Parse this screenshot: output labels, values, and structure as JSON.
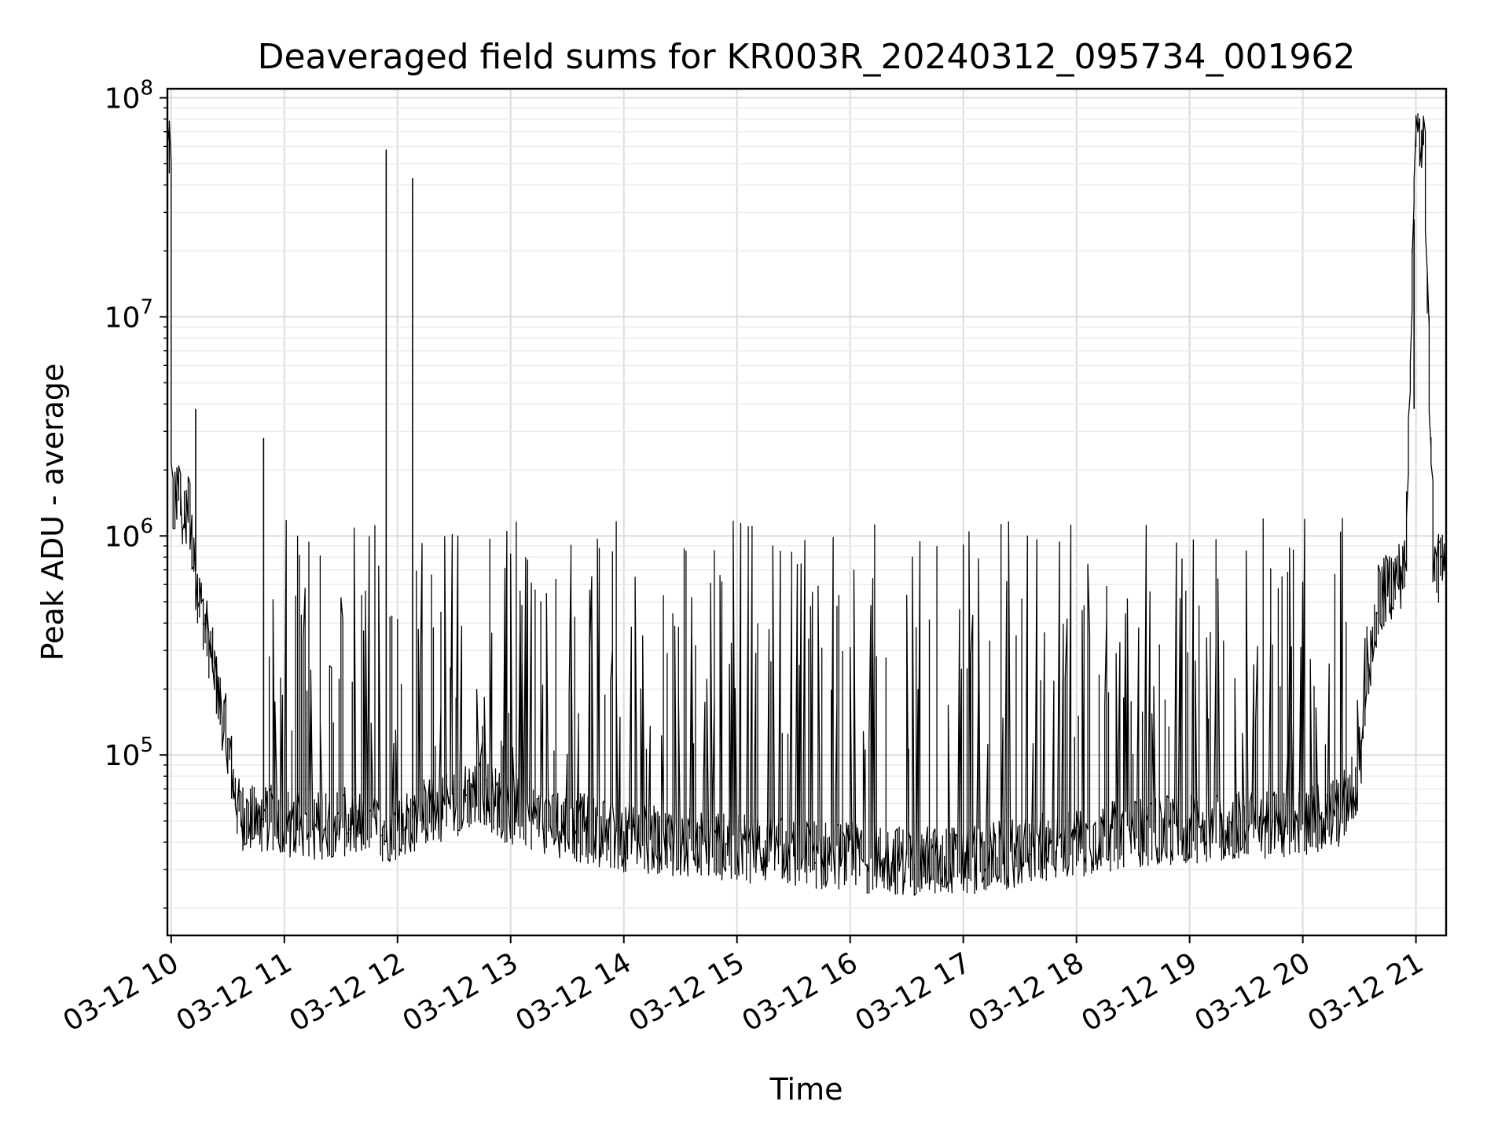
{
  "chart_data": {
    "type": "line",
    "title": "Deaveraged field sums for KR003R_20240312_095734_001962",
    "xlabel": "Time",
    "ylabel": "Peak ADU - average",
    "yscale": "log",
    "ylim": [
      15000,
      110000000
    ],
    "xlim": [
      "2024-03-12 09:58",
      "2024-03-12 21:16"
    ],
    "grid": "on",
    "line_color": "#000000",
    "x_ticks": [
      {
        "value": "2024-03-12 10:00",
        "label": "03-12 10"
      },
      {
        "value": "2024-03-12 11:00",
        "label": "03-12 11"
      },
      {
        "value": "2024-03-12 12:00",
        "label": "03-12 12"
      },
      {
        "value": "2024-03-12 13:00",
        "label": "03-12 13"
      },
      {
        "value": "2024-03-12 14:00",
        "label": "03-12 14"
      },
      {
        "value": "2024-03-12 15:00",
        "label": "03-12 15"
      },
      {
        "value": "2024-03-12 16:00",
        "label": "03-12 16"
      },
      {
        "value": "2024-03-12 17:00",
        "label": "03-12 17"
      },
      {
        "value": "2024-03-12 18:00",
        "label": "03-12 18"
      },
      {
        "value": "2024-03-12 19:00",
        "label": "03-12 19"
      },
      {
        "value": "2024-03-12 20:00",
        "label": "03-12 20"
      },
      {
        "value": "2024-03-12 21:00",
        "label": "03-12 21"
      }
    ],
    "y_ticks": [
      {
        "value": 100000,
        "base": "10",
        "exp": "5"
      },
      {
        "value": 1000000,
        "base": "10",
        "exp": "6"
      },
      {
        "value": 10000000,
        "base": "10",
        "exp": "7"
      },
      {
        "value": 100000000,
        "base": "10",
        "exp": "8"
      }
    ],
    "series": [
      {
        "x": [
          "2024-03-12 09:58",
          "2024-03-12 09:59",
          "2024-03-12 10:00",
          "2024-03-12 10:01",
          "2024-03-12 10:02",
          "2024-03-12 10:04",
          "2024-03-12 10:06",
          "2024-03-12 10:08",
          "2024-03-12 10:10",
          "2024-03-12 10:12",
          "2024-03-12 10:14",
          "2024-03-12 10:16",
          "2024-03-12 10:18",
          "2024-03-12 10:22",
          "2024-03-12 10:26",
          "2024-03-12 10:30",
          "2024-03-12 10:33",
          "2024-03-12 10:36",
          "2024-03-12 10:40",
          "2024-03-12 10:45",
          "2024-03-12 10:50",
          "2024-03-12 11:00",
          "2024-03-12 11:15",
          "2024-03-12 11:30",
          "2024-03-12 11:45",
          "2024-03-12 12:00",
          "2024-03-12 12:15",
          "2024-03-12 12:30",
          "2024-03-12 12:45",
          "2024-03-12 13:00",
          "2024-03-12 13:30",
          "2024-03-12 14:00",
          "2024-03-12 14:30",
          "2024-03-12 15:00",
          "2024-03-12 15:30",
          "2024-03-12 16:00",
          "2024-03-12 16:30",
          "2024-03-12 17:00",
          "2024-03-12 17:30",
          "2024-03-12 18:00",
          "2024-03-12 18:30",
          "2024-03-12 19:00",
          "2024-03-12 19:30",
          "2024-03-12 20:00",
          "2024-03-12 20:20",
          "2024-03-12 20:30",
          "2024-03-12 20:35",
          "2024-03-12 20:40",
          "2024-03-12 20:50",
          "2024-03-12 20:55",
          "2024-03-12 21:00",
          "2024-03-12 21:02",
          "2024-03-12 21:05",
          "2024-03-12 21:10",
          "2024-03-12 21:16"
        ],
        "y": [
          45000000,
          55000000,
          60000000,
          1500000,
          1300000,
          1800000,
          1200000,
          1100000,
          1500000,
          800000,
          600000,
          500000,
          400000,
          280000,
          180000,
          120000,
          80000,
          55000,
          52000,
          50000,
          52000,
          48000,
          47000,
          50000,
          46000,
          47000,
          55000,
          60000,
          70000,
          55000,
          48000,
          42000,
          40000,
          38000,
          36000,
          34000,
          33000,
          33000,
          36000,
          40000,
          44000,
          46000,
          48000,
          50000,
          55000,
          80000,
          200000,
          500000,
          650000,
          700000,
          70000000,
          65000000,
          60000000,
          700000,
          720000
        ]
      }
    ],
    "spikes": [
      {
        "x": "2024-03-12 10:13",
        "y": 3800000
      },
      {
        "x": "2024-03-12 10:49",
        "y": 2800000
      },
      {
        "x": "2024-03-12 11:54",
        "y": 58000000
      },
      {
        "x": "2024-03-12 12:08",
        "y": 43000000
      },
      {
        "x": "2024-03-12 20:59",
        "y": 3800000
      }
    ]
  }
}
